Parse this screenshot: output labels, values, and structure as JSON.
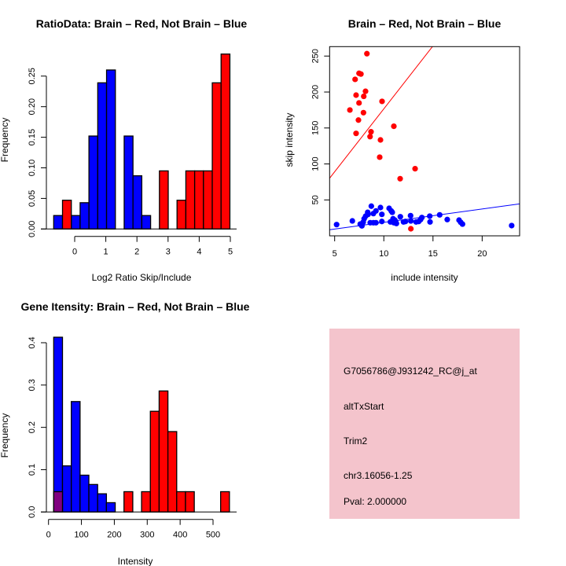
{
  "chart_data": [
    {
      "type": "bar",
      "subtype": "histogram",
      "title": "RatioData: Brain – Red, Not Brain – Blue",
      "xlabel": "Log2 Ratio Skip/Include",
      "ylabel": "Frequency",
      "xlim": [
        -0.674,
        4.99
      ],
      "ylim": [
        0,
        0.286
      ],
      "bin_start": -0.674,
      "bin_width": 0.283,
      "xticks": [
        "0",
        "1",
        "2",
        "3",
        "4",
        "5"
      ],
      "yticks": [
        "0.00",
        "0.05",
        "0.10",
        "0.15",
        "0.20",
        "0.25"
      ],
      "series": [
        {
          "name": "Not Brain",
          "color": "#0000ff",
          "values": [
            0.022,
            0,
            0.022,
            0.043,
            0.152,
            0.239,
            0.26,
            0,
            0.152,
            0.087,
            0.022,
            0,
            0,
            0,
            0,
            0,
            0,
            0,
            0,
            0
          ]
        },
        {
          "name": "Brain",
          "color": "#ff0000",
          "values": [
            0,
            0.047,
            0,
            0,
            0,
            0,
            0,
            0,
            0,
            0,
            0,
            0,
            0.095,
            0,
            0.047,
            0.095,
            0.095,
            0.095,
            0.239,
            0.286
          ]
        }
      ]
    },
    {
      "type": "scatter",
      "title": "Brain – Red, Not Brain – Blue",
      "xlabel": "include intensity",
      "ylabel": "skip intensity",
      "xlim": [
        4.49,
        23.81
      ],
      "ylim": [
        0,
        263
      ],
      "xticks": [
        "5",
        "10",
        "15",
        "20"
      ],
      "yticks": [
        "50",
        "100",
        "150",
        "200",
        "250"
      ],
      "series": [
        {
          "name": "Brain",
          "color": "#ff0000",
          "fit": {
            "intercept": 1.6,
            "slope": 17.5
          },
          "points": [
            [
              8.28,
              253.3
            ],
            [
              7.48,
              226
            ],
            [
              7.67,
              225
            ],
            [
              7.08,
              217.6
            ],
            [
              7.18,
              195.7
            ],
            [
              8.14,
              201
            ],
            [
              7.96,
              194
            ],
            [
              7.48,
              184.8
            ],
            [
              9.82,
              187
            ],
            [
              6.55,
              175
            ],
            [
              7.93,
              171.3
            ],
            [
              7.42,
              161
            ],
            [
              11.02,
              152.4
            ],
            [
              7.18,
              142.5
            ],
            [
              8.7,
              144.7
            ],
            [
              8.6,
              138
            ],
            [
              9.66,
              133.4
            ],
            [
              9.58,
              109.4
            ],
            [
              13.18,
              93.4
            ],
            [
              11.66,
              79.5
            ],
            [
              12.75,
              9.9
            ]
          ]
        },
        {
          "name": "Not Brain",
          "color": "#0000ff",
          "fit": {
            "intercept": 0.13,
            "slope": 1.863
          },
          "points": [
            [
              5.2,
              15.7
            ],
            [
              6.8,
              20.8
            ],
            [
              7.77,
              13.9
            ],
            [
              7.6,
              16.4
            ],
            [
              7.9,
              19
            ],
            [
              8.0,
              23.8
            ],
            [
              8.15,
              27.4
            ],
            [
              8.36,
              32.8
            ],
            [
              8.4,
              29.9
            ],
            [
              8.73,
              41.3
            ],
            [
              8.94,
              31
            ],
            [
              9.2,
              34.7
            ],
            [
              9.66,
              39.4
            ],
            [
              9.8,
              29.9
            ],
            [
              8.62,
              18.3
            ],
            [
              8.94,
              18.3
            ],
            [
              9.2,
              18.3
            ],
            [
              9.8,
              20
            ],
            [
              10.54,
              38.3
            ],
            [
              10.75,
              34.7
            ],
            [
              10.86,
              32.8
            ],
            [
              10.67,
              19.4
            ],
            [
              10.94,
              23.8
            ],
            [
              11.02,
              18.3
            ],
            [
              11.2,
              20
            ],
            [
              11.28,
              17.2
            ],
            [
              11.12,
              21.9
            ],
            [
              11.68,
              26.6
            ],
            [
              12.0,
              19.4
            ],
            [
              12.2,
              20
            ],
            [
              12.72,
              28.1
            ],
            [
              12.75,
              20.8
            ],
            [
              13.28,
              19.4
            ],
            [
              13.55,
              20
            ],
            [
              13.74,
              22.7
            ],
            [
              13.87,
              25.5
            ],
            [
              14.67,
              27.4
            ],
            [
              14.7,
              19.4
            ],
            [
              15.68,
              29.2
            ],
            [
              16.45,
              22.7
            ],
            [
              17.65,
              21.9
            ],
            [
              17.81,
              19
            ],
            [
              18.0,
              16.4
            ],
            [
              23.0,
              14.3
            ]
          ]
        }
      ]
    },
    {
      "type": "bar",
      "subtype": "histogram",
      "title": "Gene Itensity: Brain – Red, Not Brain – Blue",
      "xlabel": "Intensity",
      "ylabel": "Frequency",
      "xlim": [
        15.8,
        549.8
      ],
      "ylim": [
        0,
        0.413
      ],
      "bin_start": 15.8,
      "bin_width": 26.7,
      "xticks": [
        "0",
        "100",
        "200",
        "300",
        "400",
        "500"
      ],
      "yticks": [
        "0.0",
        "0.1",
        "0.2",
        "0.3",
        "0.4"
      ],
      "overlap_color": "#800080",
      "series": [
        {
          "name": "Not Brain",
          "color": "#0000ff",
          "values": [
            0.413,
            0.109,
            0.261,
            0.087,
            0.065,
            0.043,
            0.022,
            0,
            0,
            0,
            0,
            0,
            0,
            0,
            0,
            0,
            0,
            0,
            0,
            0
          ]
        },
        {
          "name": "Brain",
          "color": "#ff0000",
          "values": [
            0.048,
            0,
            0,
            0,
            0,
            0,
            0,
            0,
            0.048,
            0,
            0.048,
            0.238,
            0.286,
            0.19,
            0.048,
            0.048,
            0,
            0,
            0,
            0.048
          ]
        }
      ]
    }
  ],
  "info_panel": {
    "background": "#f4c4cc",
    "probe": "G7056786@J931242_RC@j_at",
    "event_type": "altTxStart",
    "gene": "Trim2",
    "location": "chr3.16056-1.25",
    "pval": "Pval: 2.000000",
    "pval_color": "#8b0000"
  }
}
